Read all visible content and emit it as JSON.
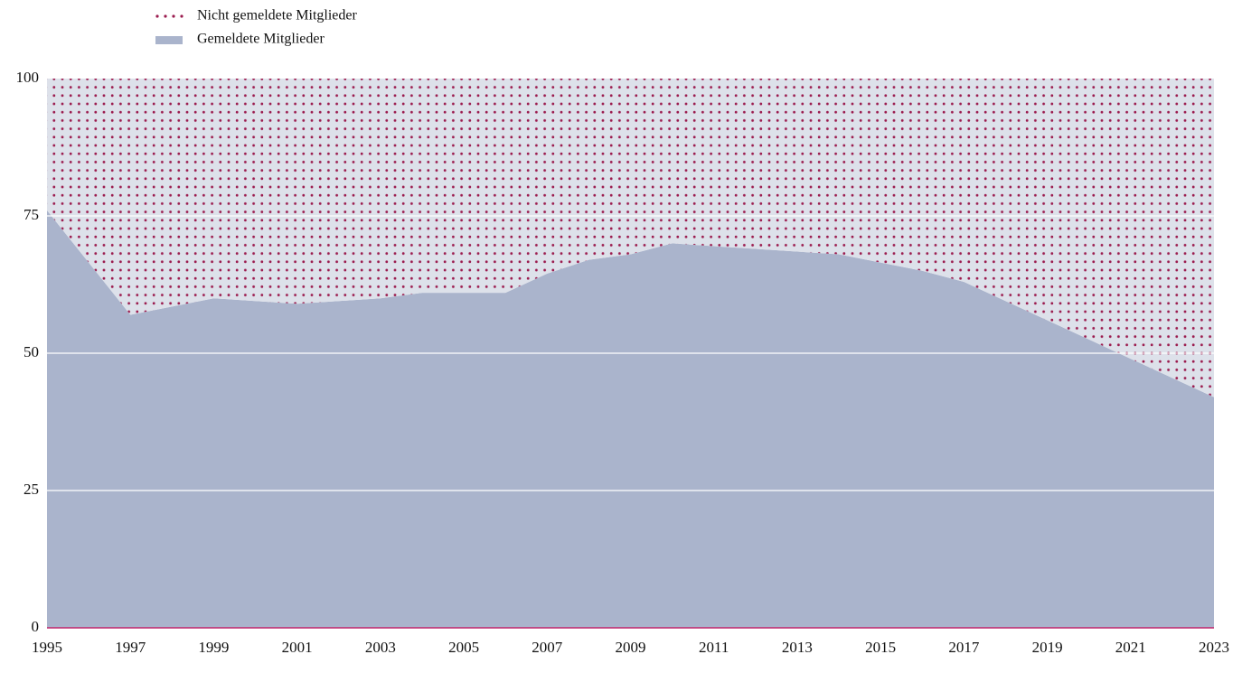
{
  "chart_data": {
    "type": "stacked_area",
    "x": [
      1995,
      1996,
      1997,
      1998,
      1999,
      2000,
      2001,
      2002,
      2003,
      2004,
      2005,
      2006,
      2007,
      2008,
      2009,
      2010,
      2011,
      2012,
      2013,
      2014,
      2015,
      2016,
      2017,
      2018,
      2019,
      2020,
      2021,
      2022,
      2023
    ],
    "series": [
      {
        "name": "Gemeldete Mitglieder",
        "color": "#aab4cc",
        "values": [
          76,
          66.5,
          57,
          58.5,
          60,
          59.5,
          59,
          59.5,
          60,
          61,
          61,
          61,
          64.5,
          67,
          68,
          70,
          69.5,
          69,
          68.5,
          68,
          66.5,
          65,
          63,
          59.5,
          56,
          52.5,
          49,
          45.5,
          42
        ]
      },
      {
        "name": "Nicht gemeldete Mitglieder",
        "color": "#9b1b4e",
        "values": [
          24,
          33.5,
          43,
          41.5,
          40,
          40.5,
          41,
          40.5,
          40,
          39,
          39,
          39,
          35.5,
          33,
          32,
          30,
          30.5,
          31,
          31.5,
          32,
          33.5,
          35,
          37,
          40.5,
          44,
          47.5,
          51,
          54.5,
          58
        ]
      }
    ],
    "xlim": [
      1995,
      2023
    ],
    "xticks": [
      1995,
      1997,
      1999,
      2001,
      2003,
      2005,
      2007,
      2009,
      2011,
      2013,
      2015,
      2017,
      2019,
      2021,
      2023
    ],
    "ylim": [
      0,
      100
    ],
    "yticks": [
      0,
      25,
      50,
      75,
      100
    ],
    "grid": true,
    "legend": "top-left"
  }
}
